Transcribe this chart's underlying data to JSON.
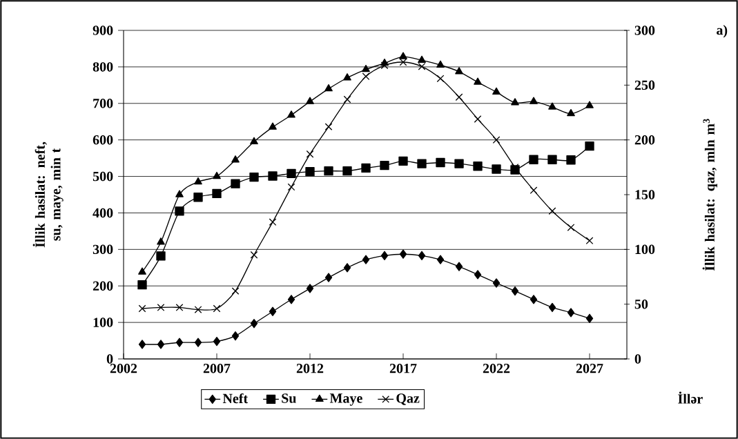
{
  "chart_data": {
    "type": "line",
    "x": [
      2003,
      2004,
      2005,
      2006,
      2007,
      2008,
      2009,
      2010,
      2011,
      2012,
      2013,
      2014,
      2015,
      2016,
      2017,
      2018,
      2019,
      2020,
      2021,
      2022,
      2023,
      2024,
      2025,
      2026,
      2027
    ],
    "series": [
      {
        "name": "Neft",
        "color": "#000000",
        "marker": "diamond",
        "values": [
          40,
          40,
          45,
          45,
          48,
          63,
          97,
          130,
          163,
          193,
          223,
          250,
          272,
          283,
          287,
          283,
          272,
          253,
          231,
          208,
          186,
          163,
          141,
          127,
          111
        ]
      },
      {
        "name": "Su",
        "color": "#000000",
        "marker": "square",
        "values": [
          203,
          282,
          405,
          443,
          453,
          480,
          498,
          501,
          508,
          513,
          515,
          515,
          523,
          530,
          542,
          535,
          538,
          535,
          528,
          520,
          518,
          546,
          546,
          545,
          583
        ]
      },
      {
        "name": "Maye",
        "color": "#000000",
        "marker": "triangle",
        "values": [
          238,
          320,
          450,
          485,
          500,
          545,
          595,
          635,
          668,
          705,
          740,
          770,
          793,
          810,
          828,
          818,
          805,
          787,
          758,
          731,
          702,
          705,
          690,
          672,
          694
        ]
      },
      {
        "name": "Qaz",
        "color": "#000000",
        "marker": "cross",
        "axis": "y2",
        "values": [
          46,
          47,
          47,
          45,
          46,
          62,
          95,
          125,
          157,
          187,
          212,
          237,
          258,
          268,
          271,
          267,
          256,
          239,
          219,
          200,
          175,
          154,
          135,
          120,
          108
        ]
      }
    ],
    "xlabel": "İllər",
    "ylabel": "İllik hasilat: neft, su, maye, min t",
    "y2label": "İllik hasilat: qaz, mln m$^{3}$",
    "annotations": [
      "a)"
    ],
    "xlim": [
      2002,
      2029
    ],
    "xticks": [
      2002,
      2007,
      2012,
      2017,
      2022,
      2027
    ],
    "ylim": [
      0,
      900
    ],
    "yticks": [
      0,
      100,
      200,
      300,
      400,
      500,
      600,
      700,
      800,
      900
    ],
    "y2lim": [
      0,
      300
    ],
    "y2ticks": [
      0,
      50,
      100,
      150,
      200,
      250,
      300
    ],
    "grid": "y",
    "legend": "bottom",
    "line_style": "solid"
  }
}
